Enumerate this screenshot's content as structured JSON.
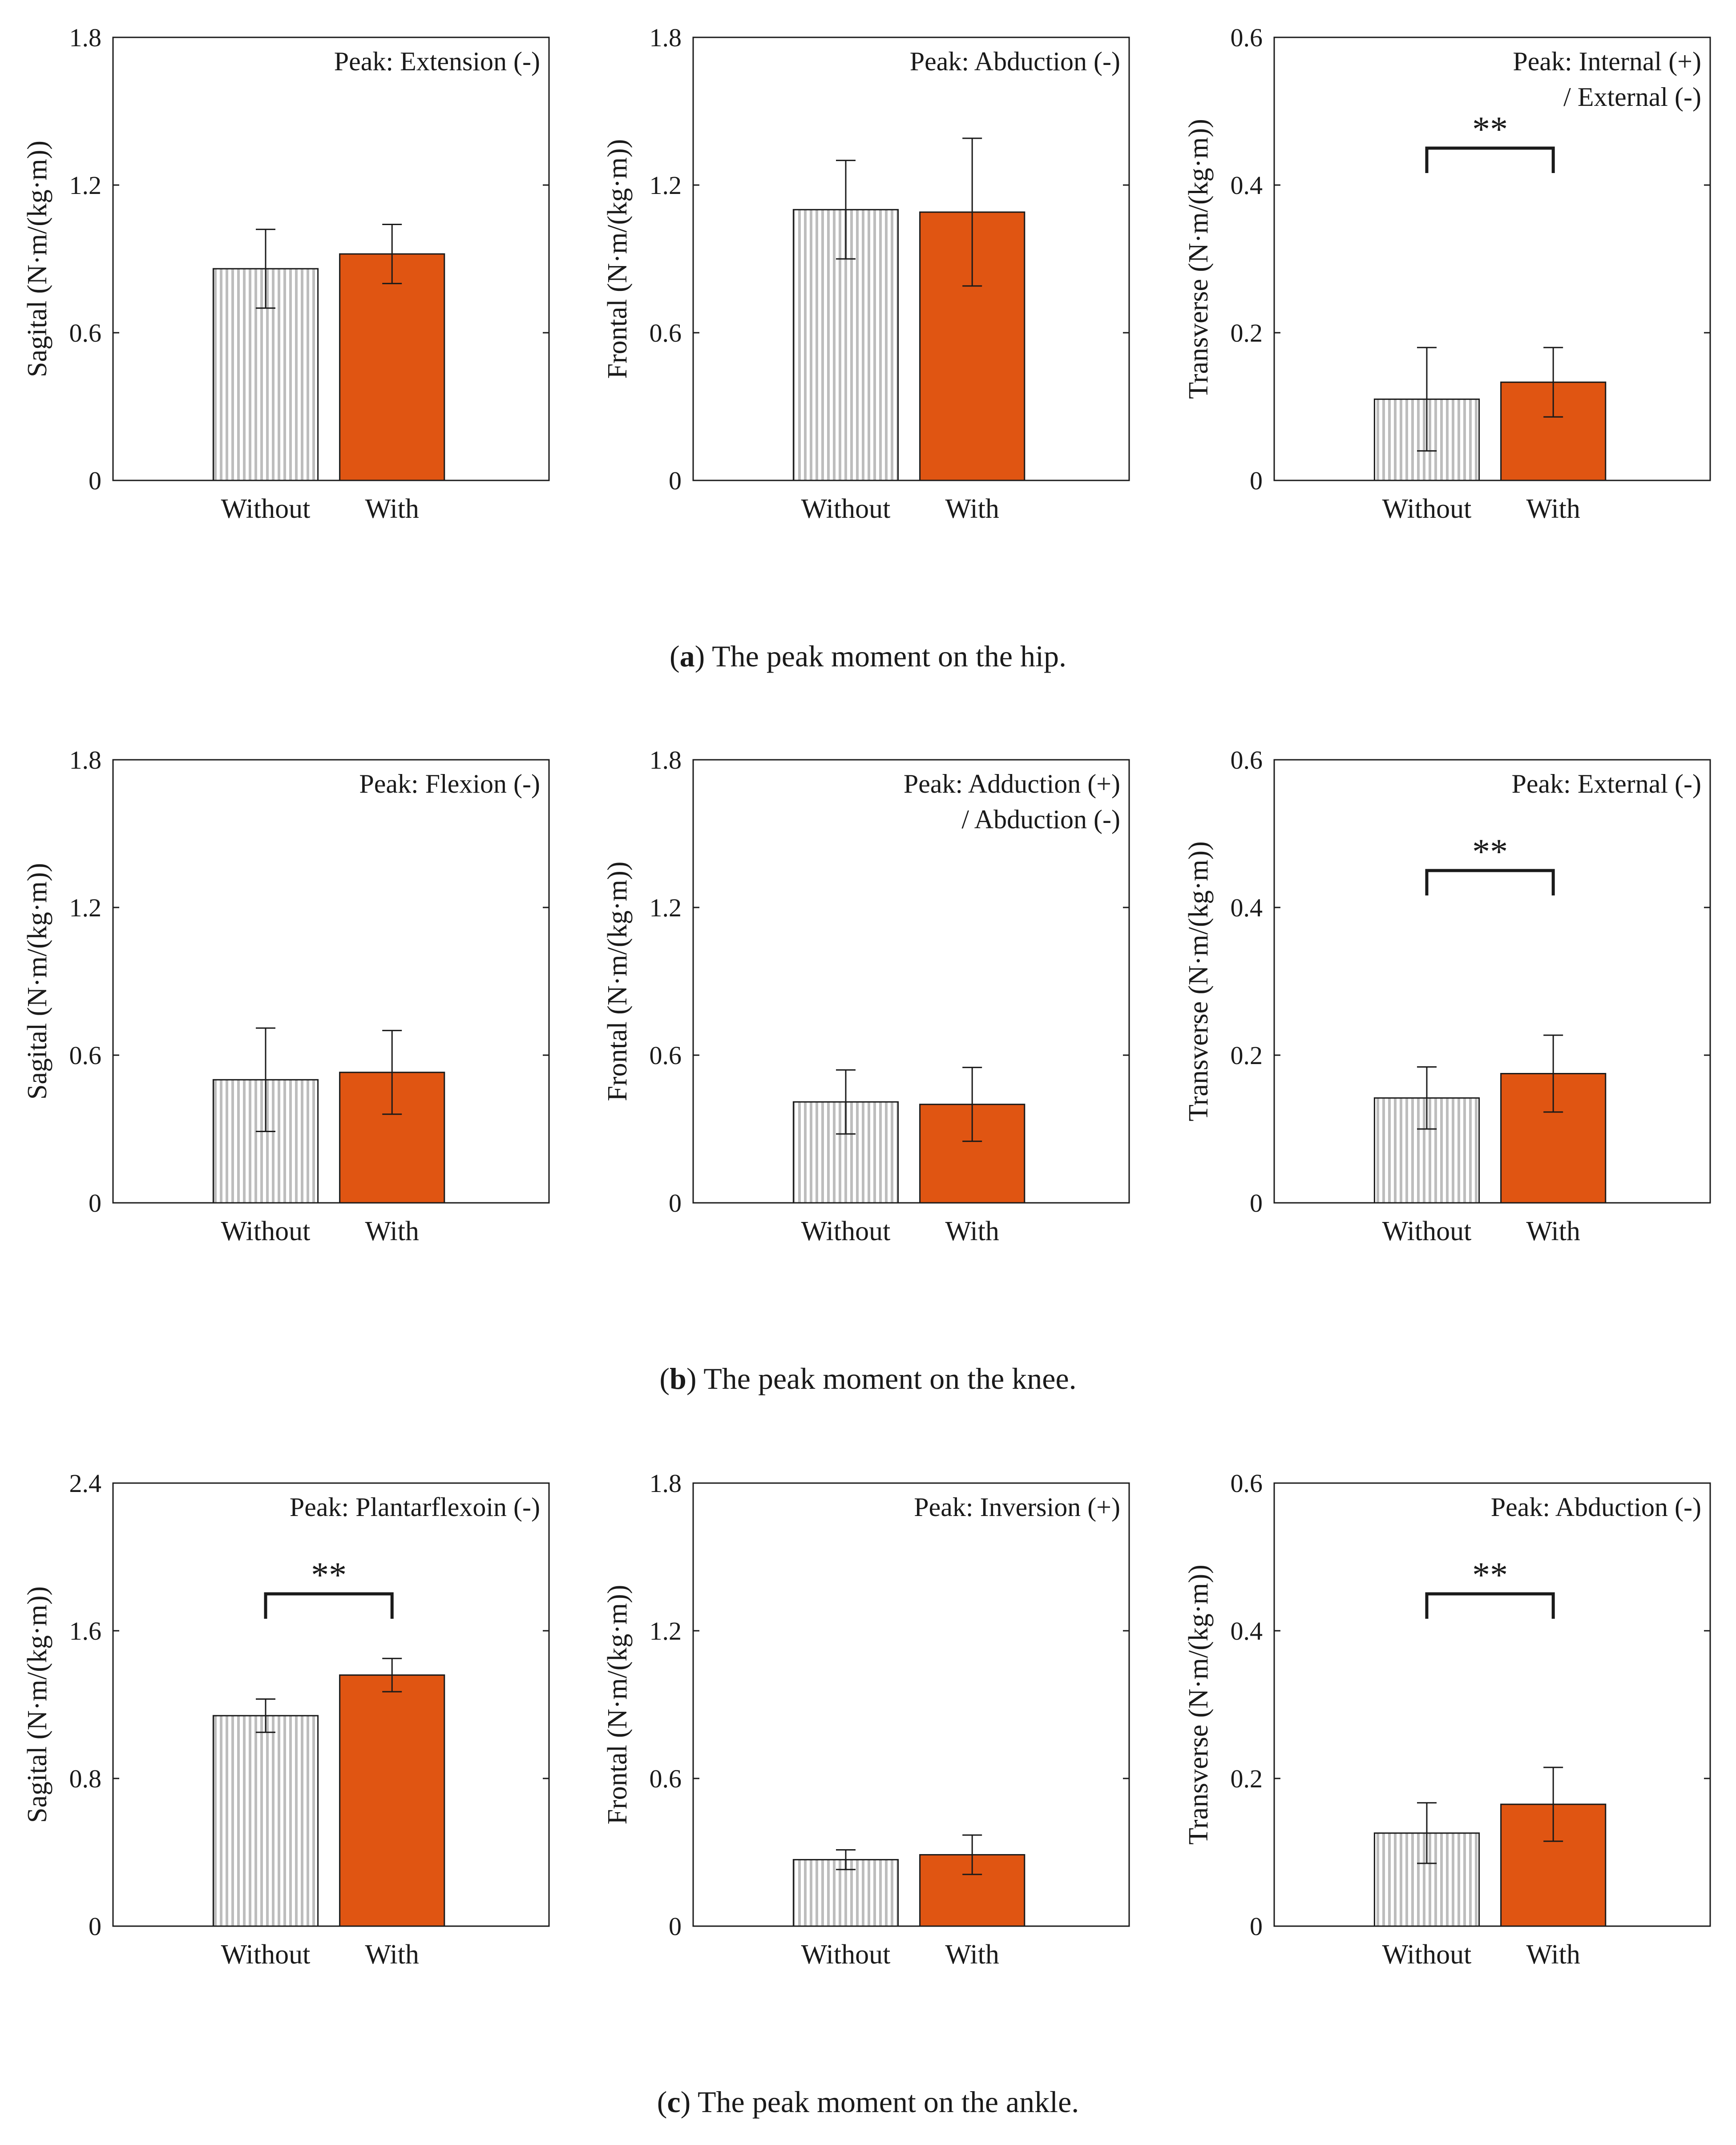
{
  "figure": {
    "captions": [
      {
        "letter": "a",
        "text": "The peak moment on the hip."
      },
      {
        "letter": "b",
        "text": "The peak moment on the knee."
      },
      {
        "letter": "c",
        "text": "The peak moment on the ankle."
      }
    ]
  },
  "colors": {
    "without_fill": "#ffffff",
    "without_stripe": "#bdbdbd",
    "with_fill": "#e05512",
    "axis": "#1a1a1a"
  },
  "chart_data": [
    {
      "type": "bar",
      "row": 0,
      "col": 0,
      "joint": "hip",
      "ylabel": "Sagital (N·m/(kg·m))",
      "annotation": [
        "Peak: Extension (-)"
      ],
      "categories": [
        "Without",
        "With"
      ],
      "ylim": [
        0,
        1.8
      ],
      "yticks": [
        0,
        0.6,
        1.2,
        1.8
      ],
      "ytick_labels": [
        "0",
        "0.6",
        "1.2",
        "1.8"
      ],
      "values": [
        0.86,
        0.92
      ],
      "errors": [
        0.16,
        0.12
      ],
      "significance": null
    },
    {
      "type": "bar",
      "row": 0,
      "col": 1,
      "joint": "hip",
      "ylabel": "Frontal (N·m/(kg·m))",
      "annotation": [
        "Peak: Abduction (-)"
      ],
      "categories": [
        "Without",
        "With"
      ],
      "ylim": [
        0,
        1.8
      ],
      "yticks": [
        0,
        0.6,
        1.2,
        1.8
      ],
      "ytick_labels": [
        "0",
        "0.6",
        "1.2",
        "1.8"
      ],
      "values": [
        1.1,
        1.09
      ],
      "errors": [
        0.2,
        0.3
      ],
      "significance": null
    },
    {
      "type": "bar",
      "row": 0,
      "col": 2,
      "joint": "hip",
      "ylabel": "Transverse (N·m/(kg·m))",
      "annotation": [
        "Peak: Internal (+)",
        "/ External (-)"
      ],
      "categories": [
        "Without",
        "With"
      ],
      "ylim": [
        0,
        0.6
      ],
      "yticks": [
        0,
        0.2,
        0.4,
        0.6
      ],
      "ytick_labels": [
        "0",
        "0.2",
        "0.4",
        "0.6"
      ],
      "values": [
        0.11,
        0.133
      ],
      "errors": [
        0.07,
        0.047
      ],
      "significance": {
        "label": "**",
        "level": 0.45
      }
    },
    {
      "type": "bar",
      "row": 1,
      "col": 0,
      "joint": "knee",
      "ylabel": "Sagital (N·m/(kg·m))",
      "annotation": [
        "Peak: Flexion (-)"
      ],
      "categories": [
        "Without",
        "With"
      ],
      "ylim": [
        0,
        1.8
      ],
      "yticks": [
        0,
        0.6,
        1.2,
        1.8
      ],
      "ytick_labels": [
        "0",
        "0.6",
        "1.2",
        "1.8"
      ],
      "values": [
        0.5,
        0.53
      ],
      "errors": [
        0.21,
        0.17
      ],
      "significance": null
    },
    {
      "type": "bar",
      "row": 1,
      "col": 1,
      "joint": "knee",
      "ylabel": "Frontal (N·m/(kg·m))",
      "annotation": [
        "Peak: Adduction (+)",
        "/ Abduction (-)"
      ],
      "categories": [
        "Without",
        "With"
      ],
      "ylim": [
        0,
        1.8
      ],
      "yticks": [
        0,
        0.6,
        1.2,
        1.8
      ],
      "ytick_labels": [
        "0",
        "0.6",
        "1.2",
        "1.8"
      ],
      "values": [
        0.41,
        0.4
      ],
      "errors": [
        0.13,
        0.15
      ],
      "significance": null
    },
    {
      "type": "bar",
      "row": 1,
      "col": 2,
      "joint": "knee",
      "ylabel": "Transverse (N·m/(kg·m))",
      "annotation": [
        "Peak: External (-)"
      ],
      "categories": [
        "Without",
        "With"
      ],
      "ylim": [
        0,
        0.6
      ],
      "yticks": [
        0,
        0.2,
        0.4,
        0.6
      ],
      "ytick_labels": [
        "0",
        "0.2",
        "0.4",
        "0.6"
      ],
      "values": [
        0.142,
        0.175
      ],
      "errors": [
        0.042,
        0.052
      ],
      "significance": {
        "label": "**",
        "level": 0.45
      }
    },
    {
      "type": "bar",
      "row": 2,
      "col": 0,
      "joint": "ankle",
      "ylabel": "Sagital (N·m/(kg·m))",
      "annotation": [
        "Peak: Plantarflexoin (-)"
      ],
      "categories": [
        "Without",
        "With"
      ],
      "ylim": [
        0,
        2.4
      ],
      "yticks": [
        0,
        0.8,
        1.6,
        2.4
      ],
      "ytick_labels": [
        "0",
        "0.8",
        "1.6",
        "2.4"
      ],
      "values": [
        1.14,
        1.36
      ],
      "errors": [
        0.09,
        0.09
      ],
      "significance": {
        "label": "**",
        "level": 1.8
      }
    },
    {
      "type": "bar",
      "row": 2,
      "col": 1,
      "joint": "ankle",
      "ylabel": "Frontal (N·m/(kg·m))",
      "annotation": [
        "Peak: Inversion (+)"
      ],
      "categories": [
        "Without",
        "With"
      ],
      "ylim": [
        0,
        1.8
      ],
      "yticks": [
        0,
        0.6,
        1.2,
        1.8
      ],
      "ytick_labels": [
        "0",
        "0.6",
        "1.2",
        "1.8"
      ],
      "values": [
        0.27,
        0.29
      ],
      "errors": [
        0.04,
        0.08
      ],
      "significance": null
    },
    {
      "type": "bar",
      "row": 2,
      "col": 2,
      "joint": "ankle",
      "ylabel": "Transverse (N·m/(kg·m))",
      "annotation": [
        "Peak: Abduction (-)"
      ],
      "categories": [
        "Without",
        "With"
      ],
      "ylim": [
        0,
        0.6
      ],
      "yticks": [
        0,
        0.2,
        0.4,
        0.6
      ],
      "ytick_labels": [
        "0",
        "0.2",
        "0.4",
        "0.6"
      ],
      "values": [
        0.126,
        0.165
      ],
      "errors": [
        0.041,
        0.05
      ],
      "significance": {
        "label": "**",
        "level": 0.45
      }
    }
  ]
}
